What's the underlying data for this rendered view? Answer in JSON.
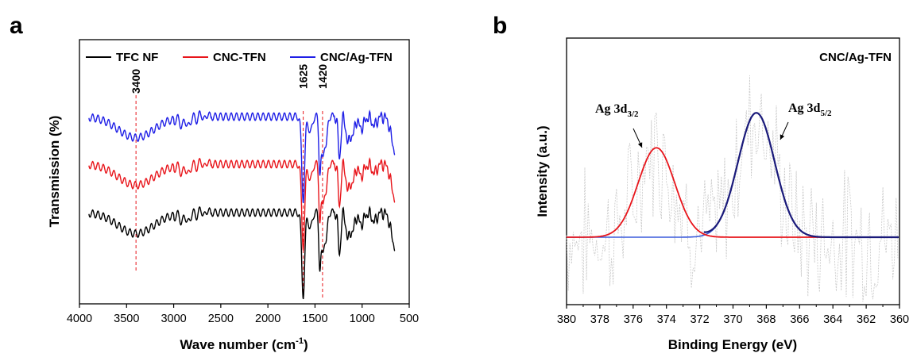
{
  "chart_data": [
    {
      "panel": "a",
      "type": "line",
      "xlabel": "Wave number (cm",
      "xlabel_sup": "-1",
      "xlabel_end": ")",
      "ylabel": "Transmission (%)",
      "xlim": [
        4000,
        500
      ],
      "x_ticks": [
        "4000",
        "3500",
        "3000",
        "2500",
        "2000",
        "1500",
        "1000",
        "500"
      ],
      "x_tick_values": [
        4000,
        3500,
        3000,
        2500,
        2000,
        1500,
        1000,
        500
      ],
      "y_ticks": [],
      "legend": {
        "placement": "top",
        "entries": [
          {
            "label": "TFC NF",
            "color": "#000000"
          },
          {
            "label": "CNC-TFN",
            "color": "#e8151b"
          },
          {
            "label": "CNC/Ag-TFN",
            "color": "#1f1fe6"
          }
        ]
      },
      "annotations": [
        {
          "label": "3400",
          "x": 3400
        },
        {
          "label": "1625",
          "x": 1625
        },
        {
          "label": "1420",
          "x": 1420
        }
      ],
      "series": [
        {
          "name": "TFC NF",
          "color": "#000000",
          "offset": 0.0
        },
        {
          "name": "CNC-TFN",
          "color": "#e8151b",
          "offset": 0.97
        },
        {
          "name": "CNC/Ag-TFN",
          "color": "#1f1fe6",
          "offset": 1.92
        }
      ]
    },
    {
      "panel": "b",
      "type": "line",
      "title": "CNC/Ag-TFN",
      "xlabel": "Binding Energy (eV)",
      "ylabel": "Intensity (a.u.)",
      "xlim": [
        380,
        360
      ],
      "x_ticks": [
        "380",
        "378",
        "376",
        "374",
        "372",
        "370",
        "368",
        "366",
        "364",
        "362",
        "360"
      ],
      "x_tick_values": [
        380,
        378,
        376,
        374,
        372,
        370,
        368,
        366,
        364,
        362,
        360
      ],
      "y_ticks": [],
      "peaks": [
        {
          "label_main": "Ag 3d",
          "label_sub": "3/2",
          "center": 374.6,
          "height": 0.46,
          "width": 1.1,
          "fit_color": "#cc1a1a"
        },
        {
          "label_main": "Ag 3d",
          "label_sub": "5/2",
          "center": 368.6,
          "height": 0.64,
          "width": 1.1,
          "fit_color": "#1a1a99"
        }
      ],
      "series": [
        {
          "name": "Raw data",
          "color": "#c8c8c8",
          "style": "dotted"
        },
        {
          "name": "Envelope",
          "color": "#1a1a7a"
        },
        {
          "name": "Ag 3d3/2 fit",
          "color": "#e8151b"
        },
        {
          "name": "Ag 3d5/2 fit",
          "color": "#3b5bdb"
        }
      ]
    }
  ],
  "figure": {
    "panel_a_label": "a",
    "panel_b_label": "b"
  }
}
